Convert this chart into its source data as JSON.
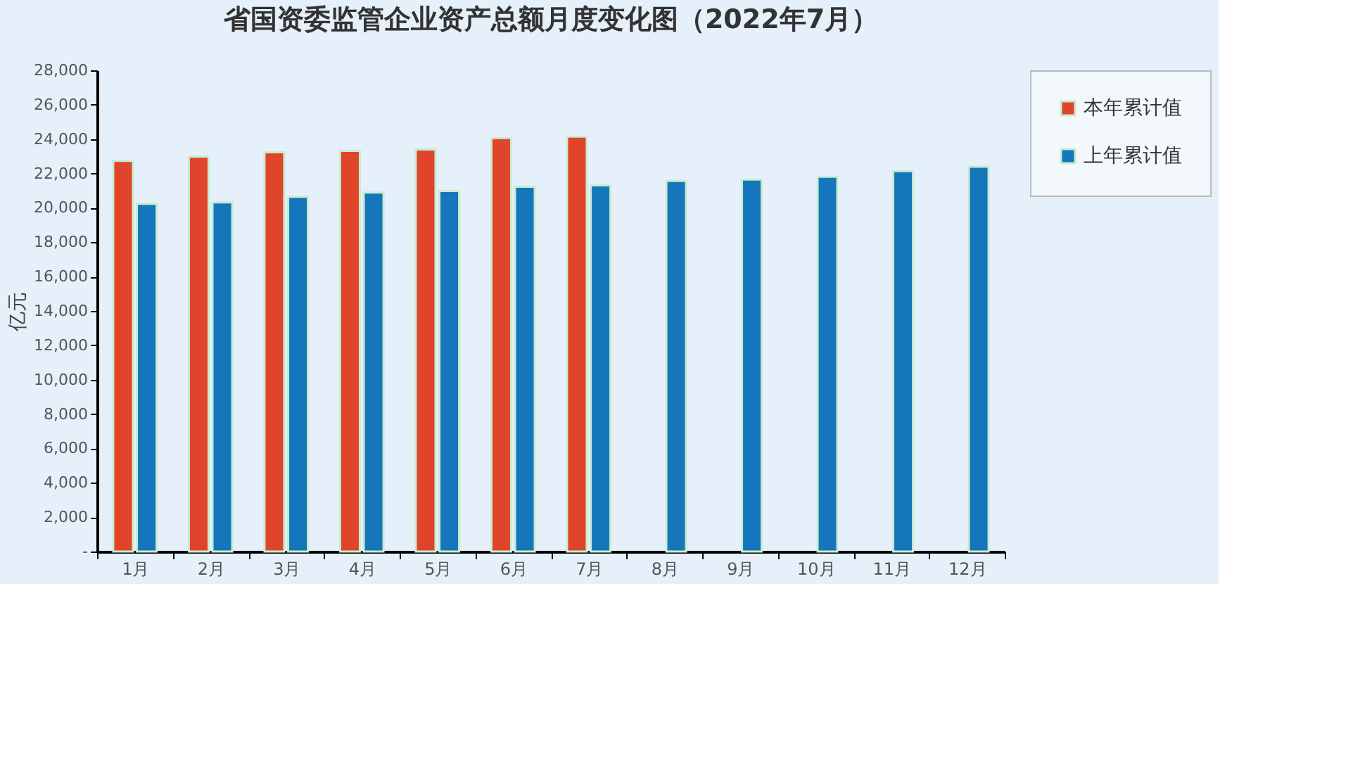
{
  "chart_data": {
    "type": "bar",
    "title": "省国资委监管企业资产总额月度变化图（2022年7月）",
    "ylabel": "亿元",
    "categories": [
      "1月",
      "2月",
      "3月",
      "4月",
      "5月",
      "6月",
      "7月",
      "8月",
      "9月",
      "10月",
      "11月",
      "12月"
    ],
    "series": [
      {
        "name": "本年累计值",
        "color": "#e0442a",
        "values": [
          22730,
          22980,
          23230,
          23310,
          23390,
          24060,
          24140,
          null,
          null,
          null,
          null,
          null
        ]
      },
      {
        "name": "上年累计值",
        "color": "#1576bb",
        "values": [
          20230,
          20310,
          20640,
          20890,
          20980,
          21230,
          21310,
          21560,
          21640,
          21810,
          22140,
          22390
        ]
      }
    ],
    "ylim": [
      0,
      28000
    ],
    "yticks": [
      {
        "value": 0,
        "label": "-"
      },
      {
        "value": 2000,
        "label": "2,000"
      },
      {
        "value": 4000,
        "label": "4,000"
      },
      {
        "value": 6000,
        "label": "6,000"
      },
      {
        "value": 8000,
        "label": "8,000"
      },
      {
        "value": 10000,
        "label": "10,000"
      },
      {
        "value": 12000,
        "label": "12,000"
      },
      {
        "value": 14000,
        "label": "14,000"
      },
      {
        "value": 16000,
        "label": "16,000"
      },
      {
        "value": 18000,
        "label": "18,000"
      },
      {
        "value": 20000,
        "label": "20,000"
      },
      {
        "value": 22000,
        "label": "22,000"
      },
      {
        "value": 24000,
        "label": "24,000"
      },
      {
        "value": 26000,
        "label": "26,000"
      },
      {
        "value": 28000,
        "label": "28,000"
      }
    ],
    "grid": false,
    "legend": "right"
  }
}
